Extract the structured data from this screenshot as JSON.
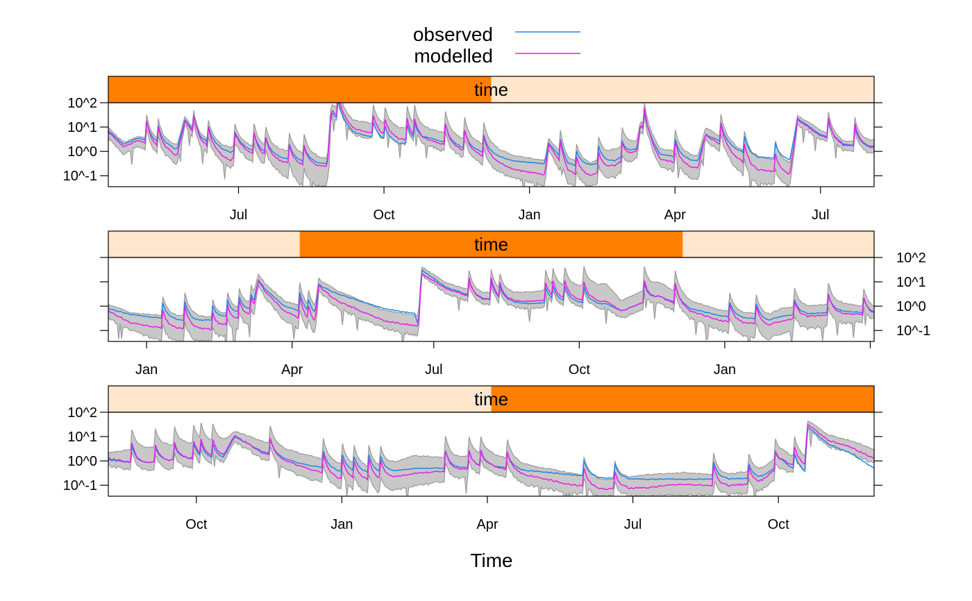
{
  "legend": {
    "observed": {
      "label": "observed",
      "color": "#1E88E5"
    },
    "modelled": {
      "label": "modelled",
      "color": "#E91EE9"
    },
    "band_color": "#C8C8C8",
    "band_outline_color": "#999999",
    "placement": "top-center"
  },
  "xlabel": "Time",
  "strip": {
    "label": "time",
    "dark_color": "#FF7F00",
    "light_color": "#FFE6CC"
  },
  "ytick_labels": [
    "10^-1",
    "10^0",
    "10^1",
    "10^2"
  ],
  "chart_data": [
    {
      "type": "area",
      "panel": 1,
      "strip_highlight": [
        0.0,
        0.5
      ],
      "ylabel_side": "left",
      "x_tick_labels": [
        "Jul",
        "Oct",
        "Jan",
        "Apr",
        "Jul"
      ],
      "ylim_log10": [
        -1.45,
        2.0
      ],
      "keypoints": [
        {
          "x": 0.0,
          "obs": 0.85,
          "mod": 0.8,
          "lo": 0.55,
          "hi": 0.95
        },
        {
          "x": 0.02,
          "obs": 0.3,
          "mod": 0.2,
          "lo": -0.1,
          "hi": 0.35
        },
        {
          "x": 0.04,
          "obs": 0.55,
          "mod": 0.45,
          "lo": 0.2,
          "hi": 0.6
        },
        {
          "x": 0.09,
          "obs": 0.1,
          "mod": -0.15,
          "lo": -0.5,
          "hi": 0.25
        },
        {
          "x": 0.1,
          "obs": 1.3,
          "mod": 1.25,
          "lo": 1.1,
          "hi": 1.4
        },
        {
          "x": 0.12,
          "obs": 0.5,
          "mod": 0.4,
          "lo": 0.1,
          "hi": 0.55
        },
        {
          "x": 0.16,
          "obs": -0.05,
          "mod": -0.4,
          "lo": -0.7,
          "hi": 0.15
        },
        {
          "x": 0.17,
          "obs": 0.2,
          "mod": 0.1,
          "lo": -0.2,
          "hi": 0.3
        },
        {
          "x": 0.22,
          "obs": -0.2,
          "mod": -0.35,
          "lo": -0.8,
          "hi": 0.1
        },
        {
          "x": 0.25,
          "obs": -0.4,
          "mod": -0.55,
          "lo": -1.4,
          "hi": -0.1
        },
        {
          "x": 0.286,
          "obs": -0.5,
          "mod": -0.6,
          "lo": -1.4,
          "hi": -0.3
        },
        {
          "x": 0.291,
          "obs": 1.6,
          "mod": 1.7,
          "lo": 1.5,
          "hi": 1.95
        },
        {
          "x": 0.32,
          "obs": 0.8,
          "mod": 0.95,
          "lo": 0.7,
          "hi": 1.25
        },
        {
          "x": 0.38,
          "obs": 0.3,
          "mod": 0.5,
          "lo": 0.3,
          "hi": 0.95
        },
        {
          "x": 0.42,
          "obs": 0.55,
          "mod": 0.45,
          "lo": 0.2,
          "hi": 0.9
        },
        {
          "x": 0.47,
          "obs": 0.1,
          "mod": 0.0,
          "lo": -0.3,
          "hi": 0.45
        },
        {
          "x": 0.5,
          "obs": -0.1,
          "mod": -0.3,
          "lo": -0.7,
          "hi": 0.2
        },
        {
          "x": 0.53,
          "obs": -0.4,
          "mod": -0.75,
          "lo": -1.1,
          "hi": -0.2
        },
        {
          "x": 0.57,
          "obs": -0.5,
          "mod": -0.95,
          "lo": -1.4,
          "hi": -0.4
        },
        {
          "x": 0.575,
          "obs": 0.35,
          "mod": 0.3,
          "lo": 0.1,
          "hi": 0.5
        },
        {
          "x": 0.6,
          "obs": -0.6,
          "mod": -0.9,
          "lo": -1.45,
          "hi": -0.4
        },
        {
          "x": 0.63,
          "obs": -0.55,
          "mod": -1.0,
          "lo": -1.45,
          "hi": -0.5
        },
        {
          "x": 0.66,
          "obs": -0.4,
          "mod": -0.6,
          "lo": -1.1,
          "hi": 0.05
        },
        {
          "x": 0.69,
          "obs": 0.1,
          "mod": 0.0,
          "lo": -0.3,
          "hi": 0.4
        },
        {
          "x": 0.695,
          "obs": 1.1,
          "mod": 1.15,
          "lo": 0.9,
          "hi": 1.25
        },
        {
          "x": 0.72,
          "obs": -0.1,
          "mod": -0.3,
          "lo": -0.6,
          "hi": 0.1
        },
        {
          "x": 0.77,
          "obs": -0.4,
          "mod": -0.7,
          "lo": -1.2,
          "hi": -0.2
        },
        {
          "x": 0.78,
          "obs": 0.7,
          "mod": 0.7,
          "lo": 0.5,
          "hi": 0.95
        },
        {
          "x": 0.84,
          "obs": -0.2,
          "mod": -0.7,
          "lo": -1.3,
          "hi": -0.2
        },
        {
          "x": 0.89,
          "obs": -0.35,
          "mod": -0.95,
          "lo": -1.45,
          "hi": -0.5
        },
        {
          "x": 0.9,
          "obs": 1.35,
          "mod": 1.3,
          "lo": 1.1,
          "hi": 1.45
        },
        {
          "x": 0.93,
          "obs": 0.7,
          "mod": 0.65,
          "lo": 0.5,
          "hi": 0.85
        },
        {
          "x": 0.96,
          "obs": 0.3,
          "mod": 0.25,
          "lo": 0.05,
          "hi": 0.4
        },
        {
          "x": 1.0,
          "obs": 0.15,
          "mod": 0.2,
          "lo": -0.1,
          "hi": 0.45
        }
      ],
      "spike_positions": [
        0.05,
        0.065,
        0.11,
        0.13,
        0.165,
        0.19,
        0.205,
        0.235,
        0.255,
        0.3,
        0.345,
        0.36,
        0.39,
        0.4,
        0.44,
        0.465,
        0.49,
        0.59,
        0.61,
        0.64,
        0.67,
        0.7,
        0.74,
        0.8,
        0.83,
        0.87,
        0.94,
        0.975
      ]
    },
    {
      "type": "area",
      "panel": 2,
      "strip_highlight": [
        0.25,
        0.75
      ],
      "ylabel_side": "right",
      "x_tick_labels": [
        "Jan",
        "Apr",
        "Jul",
        "Oct",
        "Jan"
      ],
      "ylim_log10": [
        -1.45,
        2.0
      ],
      "keypoints": [
        {
          "x": 0.0,
          "obs": -0.1,
          "mod": -0.2,
          "lo": -0.5,
          "hi": 0.05
        },
        {
          "x": 0.03,
          "obs": -0.35,
          "mod": -0.7,
          "lo": -1.0,
          "hi": -0.3
        },
        {
          "x": 0.07,
          "obs": -0.5,
          "mod": -0.9,
          "lo": -1.45,
          "hi": -0.4
        },
        {
          "x": 0.11,
          "obs": -0.6,
          "mod": -0.9,
          "lo": -1.45,
          "hi": -0.4
        },
        {
          "x": 0.14,
          "obs": -0.55,
          "mod": -0.95,
          "lo": -1.45,
          "hi": -0.5
        },
        {
          "x": 0.19,
          "obs": -0.1,
          "mod": -0.3,
          "lo": -0.7,
          "hi": 0.15
        },
        {
          "x": 0.196,
          "obs": 0.95,
          "mod": 0.9,
          "lo": 0.7,
          "hi": 1.15
        },
        {
          "x": 0.23,
          "obs": 0.0,
          "mod": -0.2,
          "lo": -0.6,
          "hi": 0.2
        },
        {
          "x": 0.27,
          "obs": -0.4,
          "mod": -0.8,
          "lo": -1.3,
          "hi": -0.2
        },
        {
          "x": 0.275,
          "obs": 0.85,
          "mod": 0.8,
          "lo": 0.6,
          "hi": 1.05
        },
        {
          "x": 0.3,
          "obs": 0.5,
          "mod": 0.2,
          "lo": -0.1,
          "hi": 0.6
        },
        {
          "x": 0.36,
          "obs": -0.1,
          "mod": -0.6,
          "lo": -0.9,
          "hi": -0.2
        },
        {
          "x": 0.4,
          "obs": -0.3,
          "mod": -0.8,
          "lo": -1.2,
          "hi": -0.4
        },
        {
          "x": 0.405,
          "obs": -0.8,
          "mod": -0.8,
          "lo": -1.2,
          "hi": -0.4
        },
        {
          "x": 0.409,
          "obs": 1.5,
          "mod": 1.35,
          "lo": 1.3,
          "hi": 1.6
        },
        {
          "x": 0.44,
          "obs": 0.8,
          "mod": 0.75,
          "lo": 0.55,
          "hi": 0.95
        },
        {
          "x": 0.48,
          "obs": 0.35,
          "mod": 0.3,
          "lo": 0.1,
          "hi": 0.55
        },
        {
          "x": 0.55,
          "obs": 0.1,
          "mod": 0.2,
          "lo": -0.1,
          "hi": 0.55
        },
        {
          "x": 0.6,
          "obs": 0.2,
          "mod": 0.3,
          "lo": 0.0,
          "hi": 0.8
        },
        {
          "x": 0.65,
          "obs": 0.1,
          "mod": 0.2,
          "lo": -0.1,
          "hi": 0.9
        },
        {
          "x": 0.67,
          "obs": -0.2,
          "mod": -0.2,
          "lo": -0.5,
          "hi": 0.2
        },
        {
          "x": 0.72,
          "obs": 0.4,
          "mod": 0.4,
          "lo": 0.1,
          "hi": 0.95
        },
        {
          "x": 0.76,
          "obs": -0.1,
          "mod": -0.2,
          "lo": -0.5,
          "hi": 0.2
        },
        {
          "x": 0.8,
          "obs": -0.4,
          "mod": -0.6,
          "lo": -1.0,
          "hi": -0.2
        },
        {
          "x": 0.84,
          "obs": -0.5,
          "mod": -0.7,
          "lo": -1.3,
          "hi": -0.3
        },
        {
          "x": 0.86,
          "obs": -0.6,
          "mod": -0.8,
          "lo": -1.4,
          "hi": -0.4
        },
        {
          "x": 0.88,
          "obs": -0.4,
          "mod": -0.6,
          "lo": -1.1,
          "hi": -0.1
        },
        {
          "x": 0.92,
          "obs": -0.3,
          "mod": -0.4,
          "lo": -0.9,
          "hi": 0.0
        },
        {
          "x": 0.96,
          "obs": -0.2,
          "mod": -0.3,
          "lo": -0.7,
          "hi": 0.1
        },
        {
          "x": 1.0,
          "obs": -0.3,
          "mod": -0.35,
          "lo": -0.6,
          "hi": -0.1
        }
      ],
      "spike_positions": [
        0.07,
        0.1,
        0.135,
        0.155,
        0.17,
        0.185,
        0.25,
        0.26,
        0.47,
        0.5,
        0.51,
        0.57,
        0.58,
        0.595,
        0.62,
        0.7,
        0.74,
        0.81,
        0.845,
        0.895,
        0.94,
        0.985
      ]
    },
    {
      "type": "area",
      "panel": 3,
      "strip_highlight": [
        0.5,
        1.0
      ],
      "ylabel_side": "left",
      "x_tick_labels": [
        "Oct",
        "Jan",
        "Apr",
        "Jul",
        "Oct"
      ],
      "ylim_log10": [
        -1.45,
        2.0
      ],
      "keypoints": [
        {
          "x": 0.0,
          "obs": 0.05,
          "mod": 0.1,
          "lo": -0.2,
          "hi": 0.3
        },
        {
          "x": 0.04,
          "obs": -0.1,
          "mod": -0.1,
          "lo": -0.4,
          "hi": 0.5
        },
        {
          "x": 0.1,
          "obs": 0.1,
          "mod": 0.1,
          "lo": -0.3,
          "hi": 0.7
        },
        {
          "x": 0.15,
          "obs": 0.1,
          "mod": 0.2,
          "lo": -0.1,
          "hi": 0.8
        },
        {
          "x": 0.165,
          "obs": 1.0,
          "mod": 1.05,
          "lo": 0.8,
          "hi": 1.2
        },
        {
          "x": 0.2,
          "obs": 0.4,
          "mod": 0.35,
          "lo": 0.1,
          "hi": 0.8
        },
        {
          "x": 0.25,
          "obs": -0.1,
          "mod": -0.2,
          "lo": -0.6,
          "hi": 0.3
        },
        {
          "x": 0.3,
          "obs": -0.4,
          "mod": -0.7,
          "lo": -1.1,
          "hi": -0.1
        },
        {
          "x": 0.35,
          "obs": -0.5,
          "mod": -0.8,
          "lo": -1.4,
          "hi": -0.3
        },
        {
          "x": 0.4,
          "obs": -0.3,
          "mod": -0.5,
          "lo": -1.0,
          "hi": 0.2
        },
        {
          "x": 0.45,
          "obs": -0.3,
          "mod": -0.4,
          "lo": -0.8,
          "hi": 0.1
        },
        {
          "x": 0.5,
          "obs": -0.2,
          "mod": -0.2,
          "lo": -0.5,
          "hi": 0.3
        },
        {
          "x": 0.55,
          "obs": -0.4,
          "mod": -0.6,
          "lo": -1.0,
          "hi": -0.2
        },
        {
          "x": 0.6,
          "obs": -0.55,
          "mod": -0.95,
          "lo": -1.3,
          "hi": -0.5
        },
        {
          "x": 0.65,
          "obs": -0.7,
          "mod": -1.15,
          "lo": -1.45,
          "hi": -0.8
        },
        {
          "x": 0.7,
          "obs": -0.75,
          "mod": -1.1,
          "lo": -1.45,
          "hi": -0.6
        },
        {
          "x": 0.75,
          "obs": -0.75,
          "mod": -0.95,
          "lo": -1.4,
          "hi": -0.5
        },
        {
          "x": 0.8,
          "obs": -0.75,
          "mod": -1.05,
          "lo": -1.4,
          "hi": -0.6
        },
        {
          "x": 0.85,
          "obs": -0.7,
          "mod": -0.9,
          "lo": -1.3,
          "hi": -0.4
        },
        {
          "x": 0.88,
          "obs": -0.1,
          "mod": -0.1,
          "lo": -0.5,
          "hi": 0.3
        },
        {
          "x": 0.91,
          "obs": -0.5,
          "mod": -0.2,
          "lo": -0.4,
          "hi": 0.1
        },
        {
          "x": 0.913,
          "obs": 1.4,
          "mod": 1.5,
          "lo": 1.3,
          "hi": 1.65
        },
        {
          "x": 0.94,
          "obs": 0.7,
          "mod": 0.85,
          "lo": 0.6,
          "hi": 1.05
        },
        {
          "x": 0.97,
          "obs": 0.3,
          "mod": 0.55,
          "lo": 0.3,
          "hi": 0.8
        },
        {
          "x": 1.0,
          "obs": -0.3,
          "mod": 0.1,
          "lo": -0.1,
          "hi": 0.45
        }
      ],
      "spike_positions": [
        0.03,
        0.06,
        0.085,
        0.11,
        0.12,
        0.135,
        0.21,
        0.28,
        0.305,
        0.32,
        0.34,
        0.355,
        0.44,
        0.47,
        0.485,
        0.52,
        0.62,
        0.66,
        0.79,
        0.835,
        0.87,
        0.895
      ]
    }
  ]
}
